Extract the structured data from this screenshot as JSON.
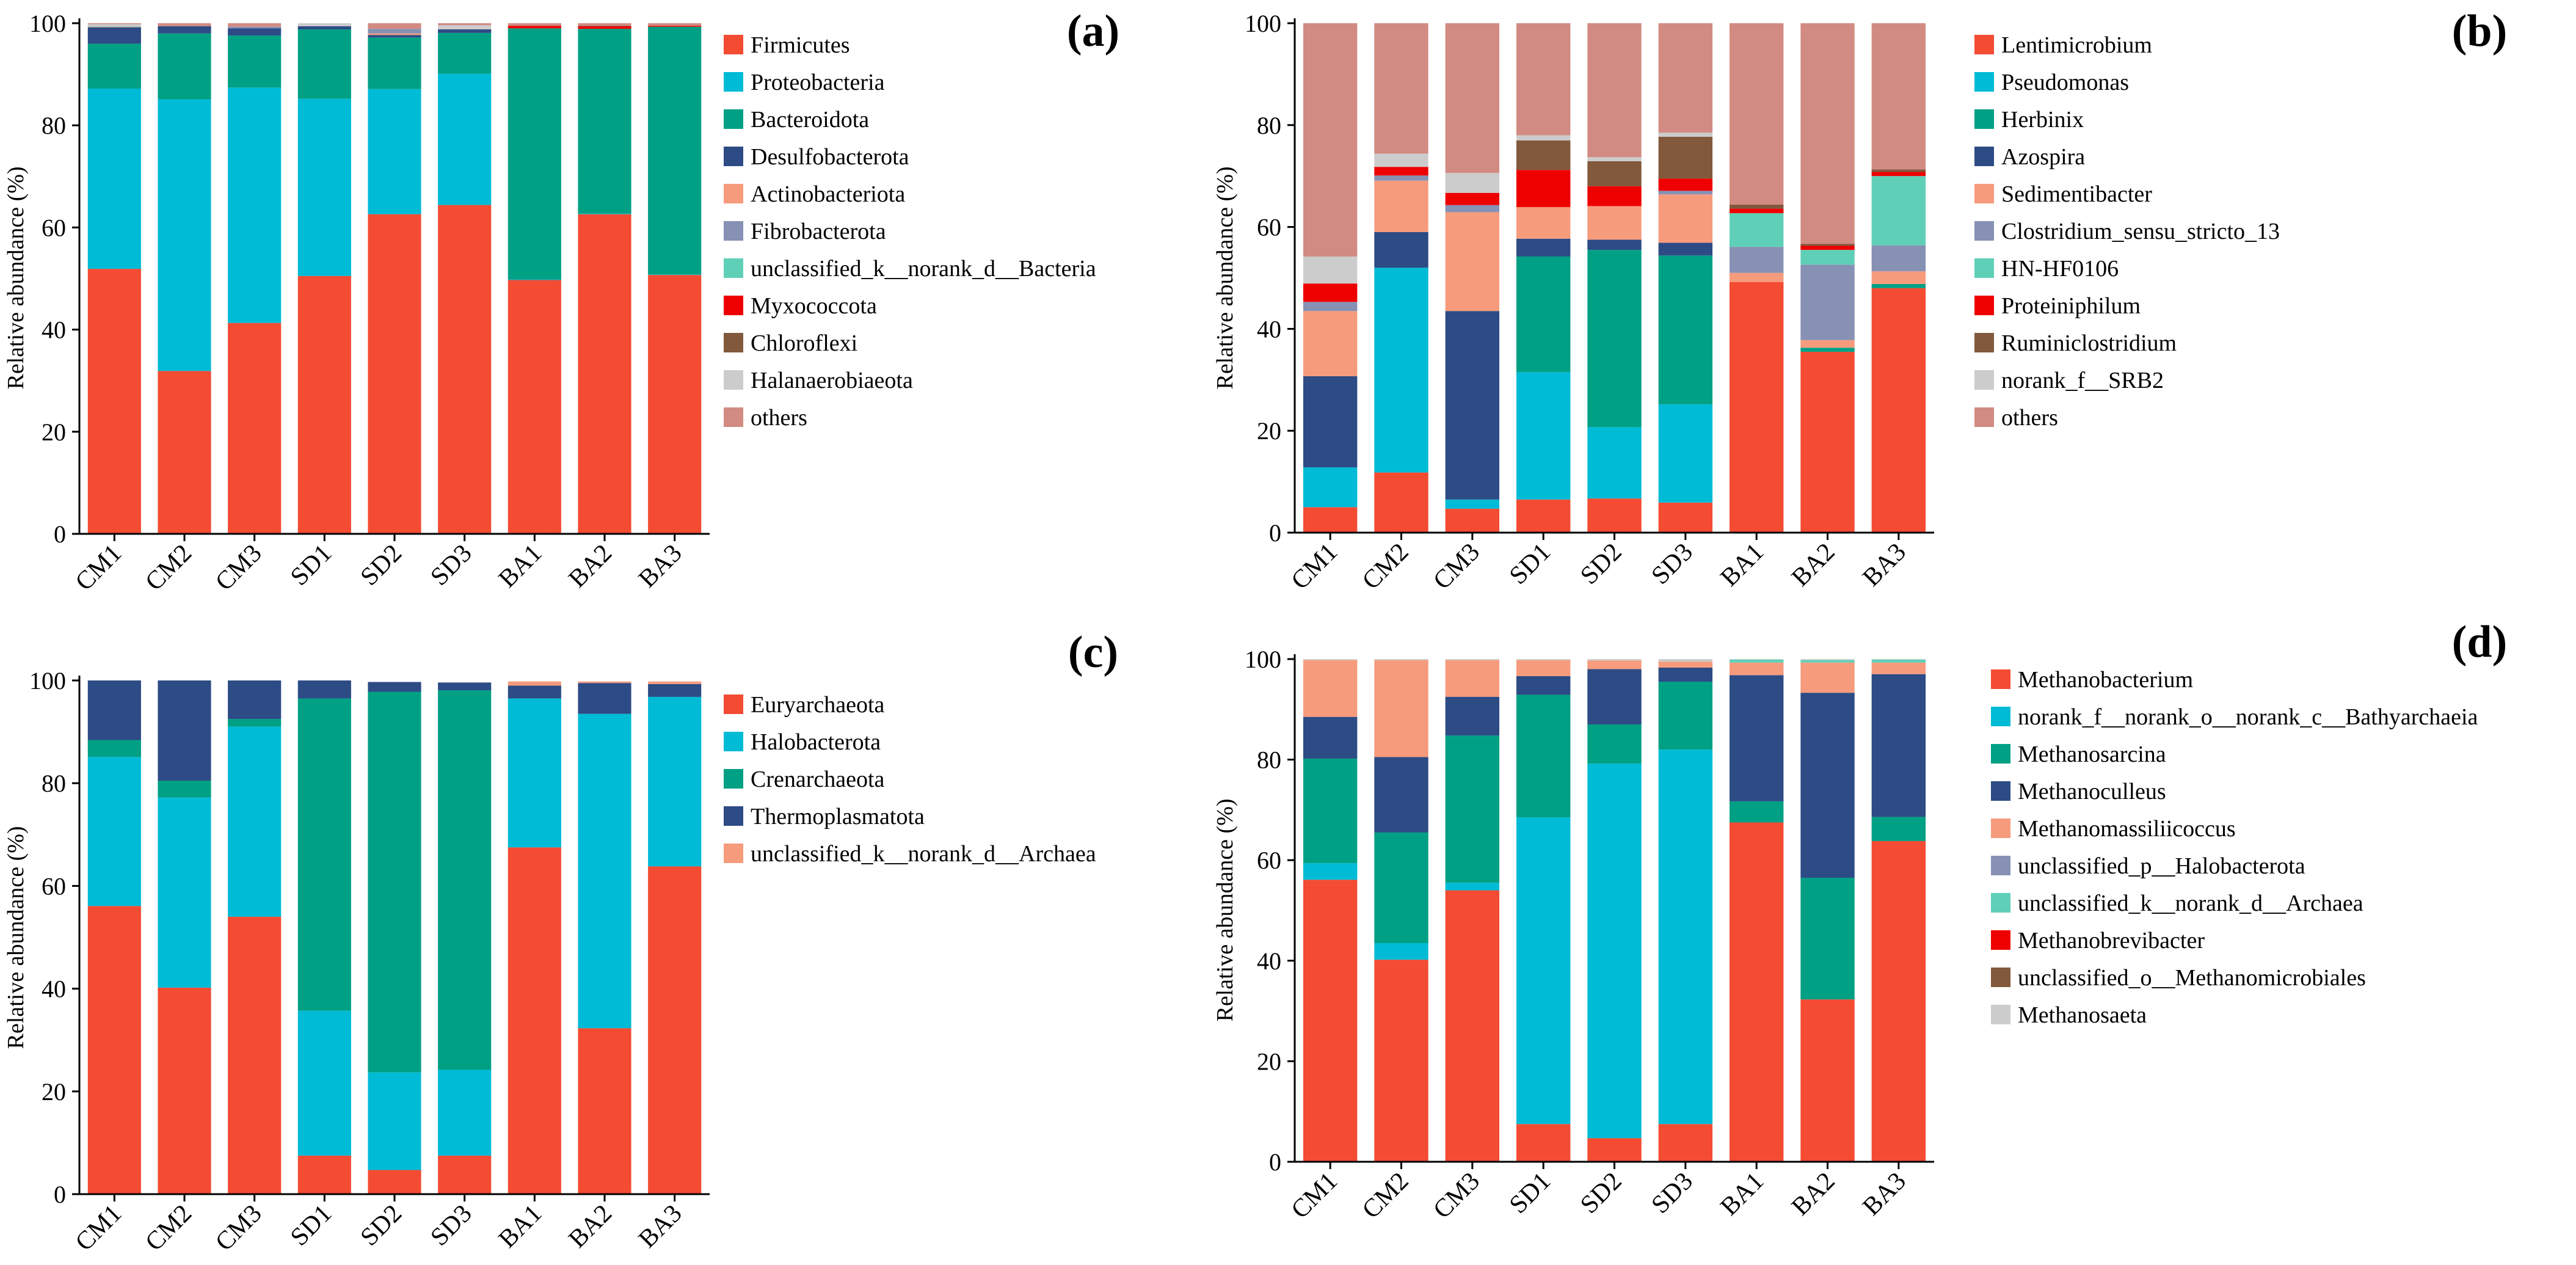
{
  "colors": {
    "red_orange": "#f44b33",
    "cyan": "#00bbd6",
    "teal": "#00a085",
    "navy": "#2d4b85",
    "salmon": "#f79b7d",
    "slate": "#8691b4",
    "mint": "#5fd0b7",
    "red": "#ee0000",
    "brown": "#82593c",
    "light_gray": "#cccccc",
    "rose": "#d28b82",
    "axis": "#000000"
  },
  "chart_data": [
    {
      "type": "bar",
      "stacked": true,
      "panel_label": "(a)",
      "ylabel": "Relative abundance (%)",
      "xlabel": "",
      "ylim": [
        0,
        100
      ],
      "yticks": [
        "0",
        "20",
        "40",
        "60",
        "80",
        "100"
      ],
      "grid": false,
      "legend_position": "right",
      "categories": [
        "CM1",
        "CM2",
        "CM3",
        "SD1",
        "SD2",
        "SD3",
        "BA1",
        "BA2",
        "BA3"
      ],
      "series": [
        {
          "name": "Firmicutes",
          "color": "#f44b33",
          "values": [
            51.9,
            31.9,
            41.3,
            50.5,
            62.6,
            64.4,
            49.7,
            62.6,
            50.7
          ]
        },
        {
          "name": "Proteobacteria",
          "color": "#00bbd6",
          "values": [
            35.3,
            53.2,
            46.1,
            34.7,
            24.5,
            25.7,
            0.1,
            0.1,
            0.1
          ]
        },
        {
          "name": "Bacteroidota",
          "color": "#00a085",
          "values": [
            8.8,
            12.9,
            10.2,
            13.6,
            10.1,
            8.0,
            49.2,
            36.2,
            48.5
          ]
        },
        {
          "name": "Desulfobacterota",
          "color": "#2d4b85",
          "values": [
            3.2,
            1.4,
            1.4,
            0.6,
            0.5,
            0.7,
            0.0,
            0.0,
            0.0
          ]
        },
        {
          "name": "Actinobacteriota",
          "color": "#f79b7d",
          "values": [
            0.1,
            0.0,
            0.0,
            0.0,
            0.3,
            0.0,
            0.0,
            0.0,
            0.0
          ]
        },
        {
          "name": "Fibrobacterota",
          "color": "#8691b4",
          "values": [
            0.0,
            0.0,
            0.3,
            0.0,
            0.9,
            0.0,
            0.0,
            0.0,
            0.0
          ]
        },
        {
          "name": "unclassified_k__norank_d__Bacteria",
          "color": "#5fd0b7",
          "values": [
            0.1,
            0.0,
            0.0,
            0.0,
            0.0,
            0.0,
            0.0,
            0.0,
            0.0
          ]
        },
        {
          "name": "Myxococcota",
          "color": "#ee0000",
          "values": [
            0.0,
            0.0,
            0.0,
            0.0,
            0.0,
            0.0,
            0.5,
            0.5,
            0.2
          ]
        },
        {
          "name": "Chloroflexi",
          "color": "#82593c",
          "values": [
            0.0,
            0.0,
            0.0,
            0.0,
            0.0,
            0.0,
            0.0,
            0.1,
            0.0
          ]
        },
        {
          "name": "Halanaerobiaeota",
          "color": "#cccccc",
          "values": [
            0.4,
            0.0,
            0.0,
            0.6,
            0.0,
            0.8,
            0.0,
            0.0,
            0.0
          ]
        },
        {
          "name": "others",
          "color": "#d28b82",
          "values": [
            0.2,
            0.6,
            0.7,
            0.0,
            1.1,
            0.4,
            0.5,
            0.5,
            0.5
          ]
        }
      ]
    },
    {
      "type": "bar",
      "stacked": true,
      "panel_label": "(b)",
      "ylabel": "Relative abundance (%)",
      "xlabel": "",
      "ylim": [
        0,
        100
      ],
      "yticks": [
        "0",
        "20",
        "40",
        "60",
        "80",
        "100"
      ],
      "grid": false,
      "legend_position": "right",
      "categories": [
        "CM1",
        "CM2",
        "CM3",
        "SD1",
        "SD2",
        "SD3",
        "BA1",
        "BA2",
        "BA3"
      ],
      "series": [
        {
          "name": "Lentimicrobium",
          "color": "#f44b33",
          "values": [
            5.0,
            11.8,
            4.7,
            6.5,
            6.7,
            5.9,
            49.2,
            35.5,
            48.0
          ]
        },
        {
          "name": "Pseudomonas",
          "color": "#00bbd6",
          "values": [
            7.8,
            40.2,
            1.8,
            25.0,
            14.0,
            19.3,
            0.0,
            0.0,
            0.0
          ]
        },
        {
          "name": "Herbinix",
          "color": "#00a085",
          "values": [
            0.0,
            0.0,
            0.0,
            22.7,
            34.8,
            29.2,
            0.0,
            0.8,
            0.8
          ]
        },
        {
          "name": "Azospira",
          "color": "#2d4b85",
          "values": [
            17.9,
            7.0,
            37.0,
            3.5,
            2.0,
            2.5,
            0.0,
            0.0,
            0.0
          ]
        },
        {
          "name": "Sedimentibacter",
          "color": "#f79b7d",
          "values": [
            12.8,
            10.1,
            19.4,
            6.2,
            6.6,
            9.5,
            1.8,
            1.5,
            2.5
          ]
        },
        {
          "name": "Clostridium_sensu_stricto_13",
          "color": "#8691b4",
          "values": [
            1.8,
            1.0,
            1.4,
            0.0,
            0.0,
            0.7,
            5.1,
            14.8,
            5.1
          ]
        },
        {
          "name": "HN-HF0106",
          "color": "#5fd0b7",
          "values": [
            0.0,
            0.0,
            0.0,
            0.0,
            0.0,
            0.0,
            6.6,
            2.9,
            13.6
          ]
        },
        {
          "name": "Proteiniphilum",
          "color": "#ee0000",
          "values": [
            3.6,
            1.7,
            2.4,
            7.3,
            3.9,
            2.4,
            0.9,
            0.8,
            0.8
          ]
        },
        {
          "name": "Ruminiclostridium",
          "color": "#82593c",
          "values": [
            0.0,
            0.0,
            0.0,
            5.8,
            4.9,
            8.2,
            0.8,
            0.4,
            0.5
          ]
        },
        {
          "name": "norank_f__SRB2",
          "color": "#cccccc",
          "values": [
            5.3,
            2.6,
            3.9,
            1.0,
            0.8,
            0.8,
            0.0,
            0.0,
            0.0
          ]
        },
        {
          "name": "others",
          "color": "#d28b82",
          "values": [
            45.8,
            25.6,
            29.4,
            22.0,
            26.3,
            21.5,
            35.6,
            43.3,
            28.7
          ]
        }
      ]
    },
    {
      "type": "bar",
      "stacked": true,
      "panel_label": "(c)",
      "ylabel": "Relative abundance (%)",
      "xlabel": "",
      "ylim": [
        0,
        100
      ],
      "yticks": [
        "0",
        "20",
        "40",
        "60",
        "80",
        "100"
      ],
      "grid": false,
      "legend_position": "right",
      "categories": [
        "CM1",
        "CM2",
        "CM3",
        "SD1",
        "SD2",
        "SD3",
        "BA1",
        "BA2",
        "BA3"
      ],
      "series": [
        {
          "name": "Euryarchaeota",
          "color": "#f44b33",
          "values": [
            56.1,
            40.2,
            54.0,
            7.5,
            4.7,
            7.5,
            67.5,
            32.3,
            63.8
          ]
        },
        {
          "name": "Halobacterota",
          "color": "#00bbd6",
          "values": [
            29.0,
            37.0,
            37.0,
            28.2,
            19.0,
            16.7,
            29.0,
            61.2,
            33.0
          ]
        },
        {
          "name": "Crenarchaeota",
          "color": "#00a085",
          "values": [
            3.3,
            3.3,
            1.5,
            60.8,
            74.1,
            73.9,
            0.0,
            0.0,
            0.0
          ]
        },
        {
          "name": "Thermoplasmatota",
          "color": "#2d4b85",
          "values": [
            11.6,
            19.5,
            7.5,
            3.5,
            1.9,
            1.5,
            2.5,
            6.0,
            2.5
          ]
        },
        {
          "name": "unclassified_k__norank_d__Archaea",
          "color": "#f79b7d",
          "values": [
            0.0,
            0.0,
            0.0,
            0.0,
            0.0,
            0.0,
            0.8,
            0.3,
            0.5
          ]
        }
      ]
    },
    {
      "type": "bar",
      "stacked": true,
      "panel_label": "(d)",
      "ylabel": "Relative abundance (%)",
      "xlabel": "",
      "ylim": [
        0,
        100
      ],
      "yticks": [
        "0",
        "20",
        "40",
        "60",
        "80",
        "100"
      ],
      "grid": false,
      "legend_position": "right",
      "categories": [
        "CM1",
        "CM2",
        "CM3",
        "SD1",
        "SD2",
        "SD3",
        "BA1",
        "BA2",
        "BA3"
      ],
      "series": [
        {
          "name": "Methanobacterium",
          "color": "#f44b33",
          "values": [
            56.1,
            40.2,
            54.0,
            7.5,
            4.7,
            7.5,
            67.5,
            32.3,
            63.8
          ]
        },
        {
          "name": "norank_f__norank_o__norank_c__Bathyarchaeia",
          "color": "#00bbd6",
          "values": [
            3.3,
            3.3,
            1.5,
            61.0,
            74.5,
            74.5,
            0.0,
            0.0,
            0.0
          ]
        },
        {
          "name": "Methanosarcina",
          "color": "#00a085",
          "values": [
            20.8,
            22.0,
            29.3,
            24.4,
            7.8,
            13.5,
            4.2,
            24.2,
            4.8
          ]
        },
        {
          "name": "Methanoculleus",
          "color": "#2d4b85",
          "values": [
            8.3,
            15.0,
            7.7,
            3.7,
            11.0,
            2.8,
            25.1,
            36.8,
            28.4
          ]
        },
        {
          "name": "Methanomassiliicoccus",
          "color": "#f79b7d",
          "values": [
            11.3,
            19.3,
            7.3,
            3.2,
            1.7,
            1.2,
            2.5,
            6.0,
            2.3
          ]
        },
        {
          "name": "unclassified_p__Halobacterota",
          "color": "#8691b4",
          "values": [
            0.0,
            0.0,
            0.0,
            0.0,
            0.0,
            0.0,
            0.0,
            0.0,
            0.0
          ]
        },
        {
          "name": "unclassified_k__norank_d__Archaea",
          "color": "#5fd0b7",
          "values": [
            0.0,
            0.0,
            0.0,
            0.0,
            0.0,
            0.0,
            0.6,
            0.5,
            0.6
          ]
        },
        {
          "name": "Methanobrevibacter",
          "color": "#ee0000",
          "values": [
            0.0,
            0.0,
            0.0,
            0.0,
            0.0,
            0.0,
            0.0,
            0.0,
            0.0
          ]
        },
        {
          "name": "unclassified_o__Methanomicrobiales",
          "color": "#82593c",
          "values": [
            0.0,
            0.0,
            0.0,
            0.0,
            0.0,
            0.0,
            0.0,
            0.0,
            0.0
          ]
        },
        {
          "name": "Methanosaeta",
          "color": "#cccccc",
          "values": [
            0.2,
            0.2,
            0.2,
            0.2,
            0.3,
            0.5,
            0.1,
            0.2,
            0.1
          ]
        }
      ]
    }
  ]
}
